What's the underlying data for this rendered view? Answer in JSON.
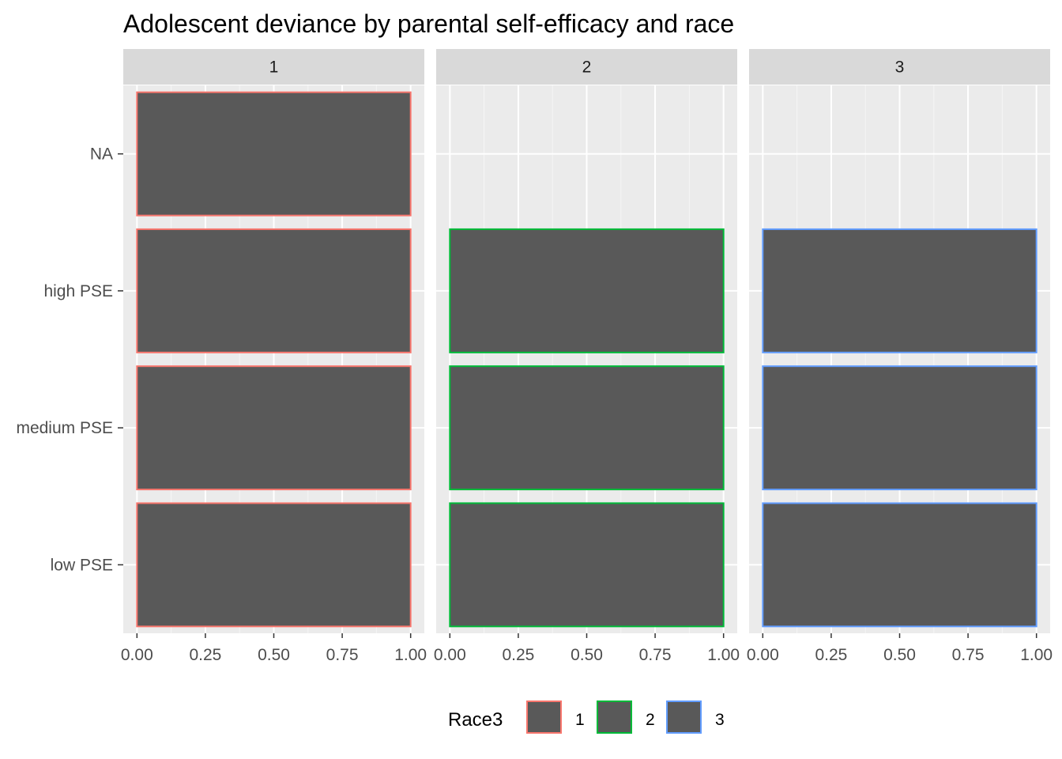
{
  "chart_data": {
    "type": "bar",
    "orientation": "horizontal",
    "title": "Adolescent deviance by parental self-efficacy and race",
    "xlabel": "",
    "ylabel": "",
    "categories": [
      "NA",
      "high PSE",
      "medium PSE",
      "low PSE"
    ],
    "xlim": [
      0,
      1
    ],
    "x_ticks": [
      "0.00",
      "0.25",
      "0.50",
      "0.75",
      "1.00"
    ],
    "x_tick_values": [
      0,
      0.25,
      0.5,
      0.75,
      1.0
    ],
    "grid": true,
    "facets": [
      {
        "label": "1",
        "color": "#F8766D",
        "values": [
          1,
          1,
          1,
          1
        ]
      },
      {
        "label": "2",
        "color": "#00BA38",
        "values": [
          null,
          1,
          1,
          1
        ]
      },
      {
        "label": "3",
        "color": "#619CFF",
        "values": [
          null,
          1,
          1,
          1
        ]
      }
    ],
    "bar_fill": "#595959",
    "legend": {
      "title": "Race3",
      "position": "bottom",
      "entries": [
        {
          "label": "1",
          "color": "#F8766D"
        },
        {
          "label": "2",
          "color": "#00BA38"
        },
        {
          "label": "3",
          "color": "#619CFF"
        }
      ]
    }
  },
  "colors": {
    "panel_background": "#EBEBEB",
    "strip_background": "#D9D9D9",
    "grid_major": "#FFFFFF"
  }
}
